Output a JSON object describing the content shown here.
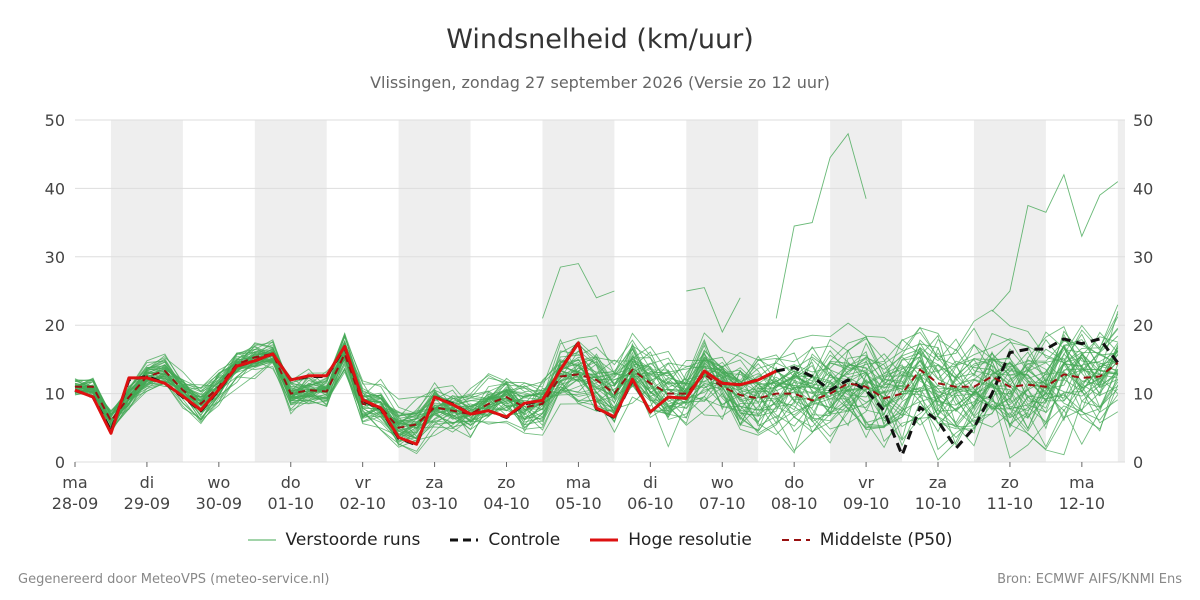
{
  "chart_data": {
    "type": "line",
    "title": "Windsnelheid (km/uur)",
    "subtitle": "Vlissingen, zondag 27 september 2026 (Versie zo 12 uur)",
    "ylim": [
      0,
      50
    ],
    "yticks": [
      0,
      10,
      20,
      30,
      40,
      50
    ],
    "grid": true,
    "legend_position": "bottom",
    "x_start_day": 0,
    "x_end_day": 14.6,
    "days": [
      {
        "day": "ma",
        "date": "28-09"
      },
      {
        "day": "di",
        "date": "29-09"
      },
      {
        "day": "wo",
        "date": "30-09"
      },
      {
        "day": "do",
        "date": "01-10"
      },
      {
        "day": "vr",
        "date": "02-10"
      },
      {
        "day": "za",
        "date": "03-10"
      },
      {
        "day": "zo",
        "date": "04-10"
      },
      {
        "day": "ma",
        "date": "05-10"
      },
      {
        "day": "di",
        "date": "06-10"
      },
      {
        "day": "wo",
        "date": "07-10"
      },
      {
        "day": "do",
        "date": "08-10"
      },
      {
        "day": "vr",
        "date": "09-10"
      },
      {
        "day": "za",
        "date": "10-10"
      },
      {
        "day": "zo",
        "date": "11-10"
      },
      {
        "day": "ma",
        "date": "12-10"
      }
    ],
    "series": [
      {
        "name": "Controle",
        "color": "#111111",
        "style": "dashed",
        "x": [
          0.0,
          0.25,
          0.5,
          0.75,
          1.0,
          1.25,
          1.5,
          1.75,
          2.0,
          2.25,
          2.5,
          2.75,
          3.0,
          3.25,
          3.5,
          3.75,
          4.0,
          4.25,
          4.5,
          4.75,
          5.0,
          5.25,
          5.5,
          5.75,
          6.0,
          6.25,
          6.5,
          6.75,
          7.0,
          7.25,
          7.5,
          7.75,
          8.0,
          8.25,
          8.5,
          8.75,
          9.0,
          9.25,
          9.5,
          9.75,
          10.0,
          10.25,
          10.5,
          10.75,
          11.0,
          11.25,
          11.5,
          11.75,
          12.0,
          12.25,
          12.5,
          12.75,
          13.0,
          13.25,
          13.5,
          13.75,
          14.0,
          14.25,
          14.5
        ],
        "values": [
          10.5,
          9.5,
          4.5,
          12,
          12.5,
          11.5,
          9.5,
          7.5,
          10.5,
          14,
          14.8,
          15.8,
          12,
          12.5,
          12.5,
          16.8,
          9,
          7.8,
          3.5,
          2.5,
          9.5,
          8.5,
          7,
          7.5,
          6.5,
          8.5,
          9,
          13.5,
          17.5,
          7.8,
          6.5,
          12,
          7.3,
          9.5,
          9.3,
          13.3,
          11.5,
          11.3,
          12,
          13.3,
          13.8,
          12.5,
          10.5,
          12,
          10.5,
          7.5,
          1,
          8,
          6,
          2,
          5,
          10,
          16,
          16.5,
          16.5,
          18,
          17.3,
          18,
          14.5
        ]
      },
      {
        "name": "Hoge resolutie",
        "color": "#dd1111",
        "style": "solid",
        "x": [
          0.0,
          0.25,
          0.5,
          0.75,
          1.0,
          1.25,
          1.5,
          1.75,
          2.0,
          2.25,
          2.5,
          2.75,
          3.0,
          3.25,
          3.5,
          3.75,
          4.0,
          4.25,
          4.5,
          4.75,
          5.0,
          5.25,
          5.5,
          5.75,
          6.0,
          6.25,
          6.5,
          6.75,
          7.0,
          7.25,
          7.5,
          7.75,
          8.0,
          8.25,
          8.5,
          8.75,
          9.0,
          9.25,
          9.5,
          9.75
        ],
        "values": [
          10.5,
          9.5,
          4.2,
          12.3,
          12.3,
          11.5,
          9.6,
          7.6,
          10.6,
          14,
          14.8,
          15.8,
          12,
          12.6,
          12.6,
          16.9,
          9.1,
          7.9,
          3.6,
          2.6,
          9.5,
          8.4,
          7,
          7.5,
          6.6,
          8.6,
          9,
          13.5,
          17.4,
          7.9,
          6.6,
          12.1,
          7.3,
          9.5,
          9.3,
          13.3,
          11.5,
          11.3,
          12,
          13.3
        ]
      },
      {
        "name": "Middelste (P50)",
        "color": "#991111",
        "style": "dashed",
        "x": [
          0.0,
          0.25,
          0.5,
          0.75,
          1.0,
          1.25,
          1.5,
          1.75,
          2.0,
          2.25,
          2.5,
          2.75,
          3.0,
          3.25,
          3.5,
          3.75,
          4.0,
          4.25,
          4.5,
          4.75,
          5.0,
          5.25,
          5.5,
          5.75,
          6.0,
          6.25,
          6.5,
          6.75,
          7.0,
          7.25,
          7.5,
          7.75,
          8.0,
          8.25,
          8.5,
          8.75,
          9.0,
          9.25,
          9.5,
          9.75,
          10.0,
          10.25,
          10.5,
          10.75,
          11.0,
          11.25,
          11.5,
          11.75,
          12.0,
          12.25,
          12.5,
          12.75,
          13.0,
          13.25,
          13.5,
          13.75,
          14.0,
          14.25,
          14.5
        ],
        "values": [
          11,
          11,
          6,
          9.5,
          12.5,
          13.3,
          10.5,
          8.5,
          11,
          14.3,
          15.3,
          15.8,
          10,
          10.5,
          10.3,
          15.8,
          8.5,
          8,
          5,
          5.5,
          8,
          7.5,
          7,
          8.5,
          9.5,
          8,
          8.5,
          12.5,
          12.8,
          12,
          10,
          13.5,
          11.5,
          10,
          10,
          12.8,
          11,
          9.8,
          9.3,
          10,
          10,
          9,
          10,
          11.5,
          11,
          9.3,
          10,
          13.5,
          11.5,
          11,
          11,
          12.5,
          11,
          11.3,
          11,
          12.8,
          12.3,
          12.5,
          14.5
        ]
      }
    ],
    "ensemble": {
      "name": "Verstoorde runs",
      "color": "#44a855",
      "members": 50,
      "x_start": 0,
      "x_step": 0.25,
      "points": 59,
      "base": [
        11,
        11,
        6,
        9.5,
        12.5,
        13.3,
        10.5,
        8.5,
        11,
        14.3,
        15.3,
        15.8,
        10,
        10.5,
        10.3,
        15.8,
        8.5,
        8,
        5,
        5.5,
        8,
        7.5,
        7,
        8.5,
        9.5,
        8,
        8.5,
        12.5,
        12.8,
        12,
        10,
        13.5,
        11.5,
        10,
        10,
        12.8,
        11,
        9.8,
        9.3,
        10,
        10,
        9,
        10,
        11.5,
        11,
        9.3,
        10,
        13.5,
        11.5,
        11,
        11,
        12.5,
        11,
        11.3,
        11,
        12.8,
        12.3,
        12.5,
        14.5
      ],
      "spread": [
        1.5,
        1.6,
        2,
        2.2,
        2.4,
        2.5,
        2.5,
        2.6,
        2.4,
        2.3,
        2.4,
        2.5,
        2.8,
        3,
        3,
        3.2,
        3.2,
        3.2,
        3,
        3.2,
        3.4,
        3.5,
        3.6,
        3.8,
        4,
        4.2,
        4.4,
        4.6,
        4.8,
        5,
        5.2,
        5.4,
        5.6,
        5.8,
        6,
        6.2,
        6.4,
        6.6,
        6.8,
        7,
        7.2,
        7.4,
        7.6,
        7.8,
        8,
        8,
        8,
        8,
        8,
        8,
        8,
        8,
        8,
        8,
        8,
        8,
        8,
        8,
        8
      ],
      "highlights": [
        {
          "x": [
            9.75,
            10.0,
            10.25,
            10.5,
            10.75,
            11.0
          ],
          "values": [
            21,
            34.5,
            35,
            44.5,
            48,
            38.5
          ]
        },
        {
          "x": [
            12.75,
            13.0,
            13.25,
            13.5,
            13.75,
            14.0,
            14.25,
            14.5
          ],
          "values": [
            22,
            25,
            37.5,
            36.5,
            42,
            33,
            39,
            41
          ]
        },
        {
          "x": [
            8.5,
            8.75,
            9.0,
            9.25
          ],
          "values": [
            25,
            25.5,
            19,
            24
          ]
        },
        {
          "x": [
            6.5,
            6.75,
            7.0,
            7.25,
            7.5
          ],
          "values": [
            21,
            28.5,
            29,
            24,
            25
          ]
        }
      ]
    }
  },
  "legend": {
    "perturbed": "Verstoorde runs",
    "control": "Controle",
    "hires": "Hoge resolutie",
    "median": "Middelste (P50)"
  },
  "footer": {
    "left": "Gegenereerd door MeteoVPS (meteo-service.nl)",
    "right": "Bron: ECMWF AIFS/KNMI Ens"
  }
}
